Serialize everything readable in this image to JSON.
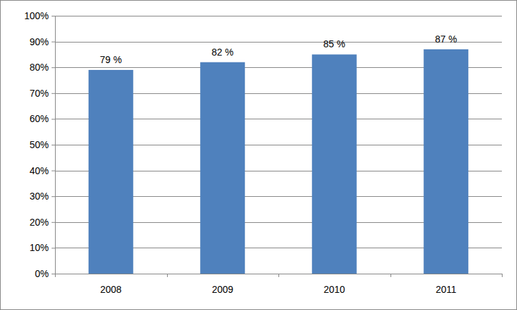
{
  "chart_data": {
    "type": "bar",
    "categories": [
      "2008",
      "2009",
      "2010",
      "2011"
    ],
    "values": [
      79,
      82,
      85,
      87
    ],
    "value_labels": [
      "79 %",
      "82 %",
      "85 %",
      "87 %"
    ],
    "color": "#4f81bd",
    "ylim": [
      0,
      100
    ],
    "yticks": [
      {
        "value": 0,
        "label": "0%"
      },
      {
        "value": 10,
        "label": "10%"
      },
      {
        "value": 20,
        "label": "20%"
      },
      {
        "value": 30,
        "label": "30%"
      },
      {
        "value": 40,
        "label": "40%"
      },
      {
        "value": 50,
        "label": "50%"
      },
      {
        "value": 60,
        "label": "60%"
      },
      {
        "value": 70,
        "label": "70%"
      },
      {
        "value": 80,
        "label": "80%"
      },
      {
        "value": 90,
        "label": "90%"
      },
      {
        "value": 100,
        "label": "100%"
      }
    ],
    "grid": true,
    "data_labels": true
  }
}
